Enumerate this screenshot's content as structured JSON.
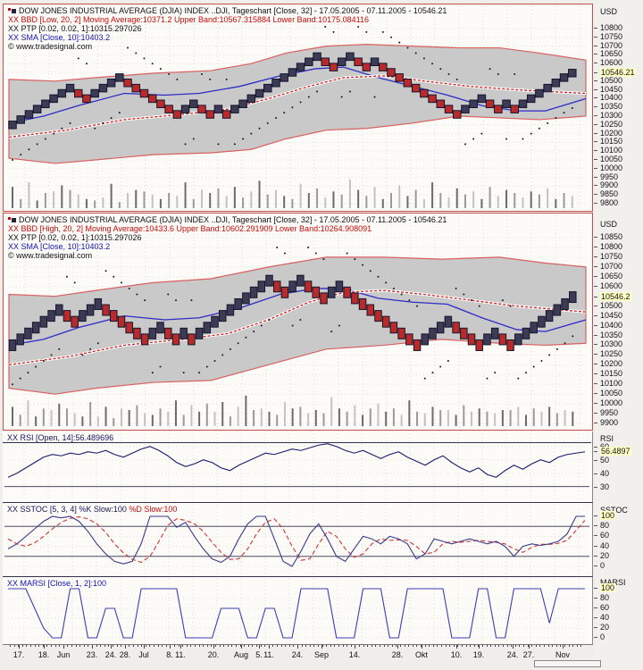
{
  "window": {
    "background": "#efeeea",
    "source": "tradesignal"
  },
  "colors": {
    "brick_up": "#3b3b55",
    "brick_down": "#b92a2a",
    "brick_border": "#15152c",
    "band_fill": "#c9c9c9",
    "band_edge": "#d96060",
    "sma_line": "#2c2cc8",
    "ptp_line": "#cc2020",
    "dot": "#1a1a1a",
    "rsi_line": "#1a1a6e",
    "sstoc_k": "#3a3a8c",
    "sstoc_d": "#cc3333",
    "marsi_line": "#3c3cb4",
    "axis_highlight_bg": "#ffffc6"
  },
  "chart_data": [
    {
      "type": "renko",
      "title": "DOW JONES INDUSTRIAL AVERAGE (DJIA) INDEX ..DJI, Tageschart [Close, 32] - 17.05.2005 - 07.11.2005 - 10546.21",
      "legend_bbd": "XX BBD [Low, 20, 2] Moving Average:10371.2 Upper Band:10567.315884 Lower Band:10175.084116",
      "legend_ptp": "XX PTP [0.02, 0.02, 1]:10315.297026",
      "legend_sma": "XX SMA [Close, 10]:10403.2",
      "copyright": "© www.tradesignal.com",
      "axis": {
        "unit": "USD",
        "tick_values": [
          10800,
          10750,
          10700,
          10650,
          10600,
          10500,
          10450,
          10400,
          10350,
          10300,
          10250,
          10200,
          10150,
          10100,
          10050,
          10000,
          9950,
          9900,
          9850,
          9800
        ],
        "highlight": "10546.21",
        "highlight_value": 10546.21,
        "ylim": [
          9800,
          10800
        ]
      },
      "bricks": [
        10250,
        10280,
        10310,
        10340,
        10370,
        10400,
        10430,
        10460,
        10430,
        10400,
        10430,
        10460,
        10490,
        10520,
        10490,
        10460,
        10430,
        10400,
        10370,
        10340,
        10310,
        10340,
        10370,
        10340,
        10310,
        10340,
        10310,
        10340,
        10370,
        10400,
        10430,
        10460,
        10490,
        10520,
        10550,
        10580,
        10610,
        10640,
        10610,
        10580,
        10610,
        10640,
        10610,
        10580,
        10610,
        10580,
        10550,
        10520,
        10490,
        10460,
        10430,
        10400,
        10370,
        10340,
        10310,
        10340,
        10370,
        10400,
        10370,
        10340,
        10370,
        10340,
        10370,
        10400,
        10430,
        10460,
        10490,
        10520,
        10546
      ],
      "band_upper": [
        [
          0,
          10510
        ],
        [
          0.08,
          10500
        ],
        [
          0.15,
          10520
        ],
        [
          0.25,
          10545
        ],
        [
          0.35,
          10560
        ],
        [
          0.42,
          10600
        ],
        [
          0.48,
          10660
        ],
        [
          0.55,
          10700
        ],
        [
          0.62,
          10710
        ],
        [
          0.7,
          10700
        ],
        [
          0.78,
          10690
        ],
        [
          0.85,
          10690
        ],
        [
          0.92,
          10660
        ],
        [
          1,
          10620
        ]
      ],
      "band_lower": [
        [
          0,
          10060
        ],
        [
          0.08,
          10030
        ],
        [
          0.15,
          10050
        ],
        [
          0.25,
          10080
        ],
        [
          0.35,
          10090
        ],
        [
          0.42,
          10110
        ],
        [
          0.48,
          10170
        ],
        [
          0.55,
          10220
        ],
        [
          0.62,
          10230
        ],
        [
          0.7,
          10260
        ],
        [
          0.78,
          10300
        ],
        [
          0.85,
          10290
        ],
        [
          0.92,
          10280
        ],
        [
          1,
          10300
        ]
      ],
      "sma": [
        [
          0,
          10260
        ],
        [
          0.06,
          10300
        ],
        [
          0.12,
          10360
        ],
        [
          0.2,
          10430
        ],
        [
          0.27,
          10420
        ],
        [
          0.33,
          10430
        ],
        [
          0.4,
          10470
        ],
        [
          0.47,
          10530
        ],
        [
          0.53,
          10570
        ],
        [
          0.58,
          10580
        ],
        [
          0.64,
          10520
        ],
        [
          0.7,
          10470
        ],
        [
          0.76,
          10420
        ],
        [
          0.82,
          10360
        ],
        [
          0.88,
          10330
        ],
        [
          0.93,
          10330
        ],
        [
          1,
          10400
        ]
      ],
      "ptp": [
        [
          0,
          10180
        ],
        [
          0.1,
          10220
        ],
        [
          0.2,
          10280
        ],
        [
          0.3,
          10310
        ],
        [
          0.38,
          10340
        ],
        [
          0.45,
          10400
        ],
        [
          0.52,
          10470
        ],
        [
          0.58,
          10520
        ],
        [
          0.65,
          10530
        ],
        [
          0.72,
          10500
        ],
        [
          0.8,
          10470
        ],
        [
          0.88,
          10450
        ],
        [
          1,
          10430
        ]
      ],
      "volume": [
        0.7,
        0.3,
        0.85,
        0.25,
        0.5,
        0.55,
        0.75,
        0.6,
        0.45,
        0.3,
        0.25,
        0.35,
        0.8,
        0.2,
        0.5,
        0.6,
        0.55,
        0.45,
        0.3,
        0.5,
        0.4,
        0.85,
        0.3,
        0.6,
        0.5,
        0.65,
        0.4,
        0.7,
        0.35,
        0.55,
        0.9,
        0.45,
        0.6,
        0.4,
        0.3,
        0.8,
        0.5,
        0.65,
        0.35,
        0.55,
        0.45,
        0.95,
        0.6,
        0.4,
        0.7,
        0.3,
        0.5,
        0.75,
        0.4,
        0.6,
        0.3,
        0.85,
        0.5,
        0.35,
        0.65,
        0.45,
        0.55,
        0.3,
        0.7,
        0.4,
        0.6,
        0.5,
        0.35,
        0.55,
        0.45,
        0.65,
        0.3,
        0.5,
        0.4
      ]
    },
    {
      "type": "renko",
      "title": "DOW JONES INDUSTRIAL AVERAGE (DJIA) INDEX ..DJI, Tageschart [Close, 32] - 17.05.2005 - 07.11.2005 - 10546.21",
      "legend_bbd": "XX BBD [High, 20, 2] Moving Average:10433.6 Upper Band:10602.291909 Lower Band:10264.908091",
      "legend_ptp": "XX PTP [0.02, 0.02, 1]:10315.297026",
      "legend_sma": "XX SMA [Close, 10]:10403.2",
      "copyright": "© www.tradesignal.com",
      "axis": {
        "unit": "USD",
        "tick_values": [
          10850,
          10800,
          10750,
          10700,
          10650,
          10600,
          10500,
          10450,
          10400,
          10350,
          10300,
          10250,
          10200,
          10150,
          10100,
          10050,
          10000,
          9950,
          9900
        ],
        "highlight": "10546.2",
        "highlight_value": 10546.2,
        "ylim": [
          9900,
          10850
        ]
      },
      "bricks": [
        10300,
        10330,
        10360,
        10390,
        10420,
        10450,
        10480,
        10450,
        10420,
        10450,
        10480,
        10510,
        10480,
        10450,
        10420,
        10390,
        10360,
        10330,
        10360,
        10390,
        10360,
        10330,
        10360,
        10330,
        10360,
        10390,
        10420,
        10450,
        10480,
        10510,
        10540,
        10570,
        10600,
        10630,
        10600,
        10570,
        10600,
        10630,
        10600,
        10570,
        10540,
        10570,
        10600,
        10570,
        10540,
        10510,
        10480,
        10450,
        10420,
        10390,
        10360,
        10330,
        10300,
        10330,
        10360,
        10390,
        10420,
        10390,
        10360,
        10330,
        10300,
        10330,
        10360,
        10330,
        10300,
        10330,
        10360,
        10390,
        10420,
        10450,
        10480,
        10510,
        10546
      ],
      "band_upper": [
        [
          0,
          10560
        ],
        [
          0.08,
          10550
        ],
        [
          0.15,
          10580
        ],
        [
          0.25,
          10620
        ],
        [
          0.35,
          10640
        ],
        [
          0.45,
          10700
        ],
        [
          0.55,
          10750
        ],
        [
          0.65,
          10750
        ],
        [
          0.75,
          10740
        ],
        [
          0.85,
          10750
        ],
        [
          0.93,
          10720
        ],
        [
          1,
          10700
        ]
      ],
      "band_lower": [
        [
          0,
          10080
        ],
        [
          0.08,
          10050
        ],
        [
          0.15,
          10080
        ],
        [
          0.25,
          10110
        ],
        [
          0.35,
          10120
        ],
        [
          0.45,
          10200
        ],
        [
          0.55,
          10280
        ],
        [
          0.65,
          10300
        ],
        [
          0.75,
          10330
        ],
        [
          0.85,
          10310
        ],
        [
          0.93,
          10300
        ],
        [
          1,
          10310
        ]
      ],
      "sma": [
        [
          0,
          10300
        ],
        [
          0.06,
          10330
        ],
        [
          0.12,
          10390
        ],
        [
          0.2,
          10450
        ],
        [
          0.27,
          10430
        ],
        [
          0.33,
          10440
        ],
        [
          0.4,
          10490
        ],
        [
          0.47,
          10560
        ],
        [
          0.53,
          10590
        ],
        [
          0.58,
          10590
        ],
        [
          0.64,
          10540
        ],
        [
          0.7,
          10520
        ],
        [
          0.76,
          10510
        ],
        [
          0.82,
          10440
        ],
        [
          0.88,
          10380
        ],
        [
          0.93,
          10370
        ],
        [
          1,
          10430
        ]
      ],
      "ptp": [
        [
          0,
          10200
        ],
        [
          0.1,
          10240
        ],
        [
          0.2,
          10300
        ],
        [
          0.3,
          10330
        ],
        [
          0.38,
          10360
        ],
        [
          0.45,
          10430
        ],
        [
          0.52,
          10520
        ],
        [
          0.58,
          10570
        ],
        [
          0.65,
          10580
        ],
        [
          0.72,
          10560
        ],
        [
          0.8,
          10530
        ],
        [
          0.88,
          10500
        ],
        [
          1,
          10470
        ]
      ],
      "volume": [
        0.6,
        0.35,
        0.8,
        0.3,
        0.55,
        0.5,
        0.7,
        0.55,
        0.4,
        0.3,
        0.75,
        0.3,
        0.6,
        0.25,
        0.55,
        0.5,
        0.65,
        0.4,
        0.35,
        0.55,
        0.45,
        0.8,
        0.35,
        0.65,
        0.45,
        0.7,
        0.45,
        0.75,
        0.3,
        0.6,
        0.95,
        0.5,
        0.55,
        0.45,
        0.35,
        0.75,
        0.55,
        0.6,
        0.4,
        0.5,
        0.4,
        0.9,
        0.55,
        0.45,
        0.65,
        0.35,
        0.55,
        0.7,
        0.45,
        0.55,
        0.35,
        0.8,
        0.45,
        0.4,
        0.6,
        0.5,
        0.5,
        0.35,
        0.65,
        0.45,
        0.55,
        0.45,
        0.4,
        0.5,
        0.5,
        0.6,
        0.35,
        0.55,
        0.45,
        0.6,
        0.4,
        0.5,
        0.45
      ]
    },
    {
      "type": "line",
      "label": "XX RSI [Open, 14]:56.489696",
      "axis": {
        "unit": "RSI",
        "tick_values": [
          60,
          50,
          40,
          30
        ],
        "highlight": "56.4897",
        "highlight_value": 56.4897,
        "ylim": [
          20,
          68
        ]
      },
      "reference_lines": [
        30
      ],
      "values": [
        37,
        40,
        44,
        48,
        52,
        54,
        53,
        55,
        54,
        56,
        55,
        57,
        54,
        52,
        55,
        58,
        60,
        57,
        53,
        48,
        45,
        47,
        50,
        48,
        44,
        42,
        46,
        49,
        52,
        55,
        54,
        56,
        58,
        57,
        59,
        61,
        62,
        60,
        57,
        55,
        57,
        54,
        51,
        54,
        56,
        52,
        49,
        46,
        50,
        53,
        48,
        44,
        41,
        44,
        39,
        37,
        42,
        46,
        43,
        47,
        50,
        48,
        52,
        54,
        55,
        56
      ]
    },
    {
      "type": "line",
      "k_label": "XX SSTOC [5, 3, 4] %K Slow:100 ",
      "d_label": "%D Slow:100",
      "axis": {
        "unit": "SSTOC",
        "tick_values": [
          80,
          60,
          40,
          20,
          0
        ],
        "highlight": "100",
        "highlight_value": 100,
        "ylim": [
          0,
          100
        ]
      },
      "reference_lines": [
        80,
        20
      ],
      "k_values": [
        35,
        45,
        60,
        75,
        90,
        100,
        97,
        100,
        90,
        70,
        45,
        25,
        10,
        5,
        10,
        45,
        100,
        100,
        100,
        78,
        88,
        60,
        35,
        15,
        8,
        20,
        55,
        85,
        100,
        100,
        55,
        10,
        0,
        30,
        65,
        85,
        55,
        20,
        10,
        35,
        60,
        55,
        45,
        60,
        55,
        45,
        15,
        25,
        55,
        50,
        45,
        50,
        55,
        50,
        45,
        50,
        40,
        20,
        40,
        45,
        42,
        45,
        50,
        65,
        100,
        100
      ],
      "d_values": [
        55,
        45,
        40,
        47,
        60,
        75,
        88,
        96,
        99,
        95,
        85,
        68,
        45,
        27,
        14,
        8,
        20,
        50,
        82,
        95,
        92,
        85,
        70,
        48,
        28,
        14,
        15,
        35,
        65,
        88,
        95,
        75,
        40,
        12,
        15,
        45,
        70,
        60,
        35,
        18,
        25,
        45,
        55,
        52,
        53,
        52,
        40,
        25,
        28,
        45,
        50,
        48,
        50,
        52,
        50,
        48,
        45,
        35,
        28,
        38,
        44,
        44,
        46,
        52,
        72,
        92
      ]
    },
    {
      "type": "line",
      "label": "XX MARSI [Close, 1, 2]:100",
      "axis": {
        "unit": "MARSI",
        "tick_values": [
          80,
          60,
          40,
          20,
          0
        ],
        "highlight": "100",
        "highlight_value": 100,
        "ylim": [
          0,
          100
        ]
      },
      "values": [
        100,
        100,
        100,
        60,
        20,
        0,
        0,
        100,
        100,
        0,
        0,
        60,
        60,
        0,
        0,
        100,
        100,
        100,
        100,
        100,
        0,
        0,
        0,
        0,
        60,
        60,
        60,
        0,
        0,
        60,
        60,
        0,
        0,
        100,
        100,
        100,
        100,
        0,
        0,
        0,
        100,
        100,
        100,
        0,
        0,
        100,
        100,
        100,
        100,
        100,
        0,
        0,
        0,
        100,
        100,
        0,
        0,
        100,
        100,
        100,
        100,
        30,
        100,
        100,
        100,
        100
      ]
    }
  ],
  "date_axis": {
    "labels": [
      {
        "t": "17.",
        "x": 18
      },
      {
        "t": "18.",
        "x": 46
      },
      {
        "t": "Jun",
        "x": 68
      },
      {
        "t": "23.",
        "x": 100
      },
      {
        "t": "24.",
        "x": 121
      },
      {
        "t": "28.",
        "x": 137
      },
      {
        "t": "Jul",
        "x": 158
      },
      {
        "t": "8.",
        "x": 187
      },
      {
        "t": "11.",
        "x": 199
      },
      {
        "t": "20.",
        "x": 236
      },
      {
        "t": "Aug",
        "x": 267
      },
      {
        "t": "5.",
        "x": 287
      },
      {
        "t": "11.",
        "x": 298
      },
      {
        "t": "24.",
        "x": 330
      },
      {
        "t": "Sep",
        "x": 357
      },
      {
        "t": "14.",
        "x": 394
      },
      {
        "t": "28.",
        "x": 442
      },
      {
        "t": "Okt",
        "x": 469
      },
      {
        "t": "10.",
        "x": 508
      },
      {
        "t": "19.",
        "x": 533
      },
      {
        "t": "24.",
        "x": 571
      },
      {
        "t": "27.",
        "x": 589
      },
      {
        "t": "Nov",
        "x": 627
      }
    ]
  }
}
